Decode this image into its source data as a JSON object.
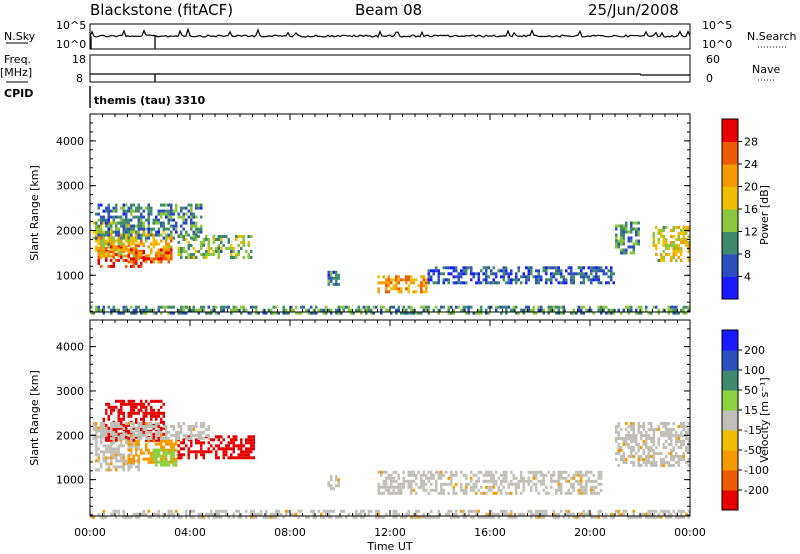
{
  "header": {
    "station": "Blackstone (fitACF)",
    "beam": "Beam 08",
    "date": "25/Jun/2008"
  },
  "top_panels": {
    "nsky_label": "N.Sky",
    "nsky_ticks": [
      "10^5",
      "10^0"
    ],
    "nsearch_label": "N.Search",
    "nsearch_ticks": [
      "10^5",
      "10^0"
    ],
    "freq_label": "Freq.",
    "freq_unit": "[MHz]",
    "freq_ticks": [
      "18",
      "8"
    ],
    "nave_label": "Nave",
    "nave_ticks": [
      "60",
      "0"
    ],
    "cpid_label": "CPID",
    "cpid_value": "themis (tau) 3310"
  },
  "chart_data": [
    {
      "type": "heatmap",
      "panel": "power",
      "ylabel": "Slant Range [km]",
      "ylim": [
        180,
        4600
      ],
      "yticks": [
        "1000",
        "2000",
        "3000",
        "4000"
      ],
      "ytick_values": [
        1000,
        2000,
        3000,
        4000
      ],
      "xlim": [
        0,
        24
      ],
      "colorbar": {
        "label": "Power [dB]",
        "ticks": [
          "4",
          "8",
          "12",
          "16",
          "20",
          "24",
          "28"
        ],
        "range": [
          0,
          30
        ],
        "colors": [
          "#1a1aff",
          "#2b4fbf",
          "#3f8a6e",
          "#8cc63f",
          "#f0c000",
          "#f59a00",
          "#ee5a00",
          "#e60000"
        ]
      },
      "regions": [
        {
          "x": [
            0.1,
            2.0
          ],
          "y": [
            1700,
            2200
          ],
          "value": 14
        },
        {
          "x": [
            0.3,
            2.2
          ],
          "y": [
            1200,
            1700
          ],
          "value": 26
        },
        {
          "x": [
            0.2,
            3.3
          ],
          "y": [
            1400,
            2000
          ],
          "value": 18
        },
        {
          "x": [
            1.5,
            3.3
          ],
          "y": [
            1300,
            1600
          ],
          "value": 24
        },
        {
          "x": [
            0.2,
            4.5
          ],
          "y": [
            1800,
            2600
          ],
          "value": 8
        },
        {
          "x": [
            3.5,
            6.5
          ],
          "y": [
            1400,
            1900
          ],
          "value": 12
        },
        {
          "x": [
            9.5,
            10.0
          ],
          "y": [
            800,
            1100
          ],
          "value": 8
        },
        {
          "x": [
            11.5,
            13.5
          ],
          "y": [
            650,
            1000
          ],
          "value": 20
        },
        {
          "x": [
            13.5,
            21.0
          ],
          "y": [
            800,
            1200
          ],
          "value": 6
        },
        {
          "x": [
            21.0,
            22.0
          ],
          "y": [
            1500,
            2200
          ],
          "value": 10
        },
        {
          "x": [
            22.5,
            24.0
          ],
          "y": [
            1300,
            2100
          ],
          "value": 16
        },
        {
          "x": [
            0.0,
            24.0
          ],
          "y": [
            180,
            320
          ],
          "value": 10
        }
      ]
    },
    {
      "type": "heatmap",
      "panel": "velocity",
      "xlabel": "Time UT",
      "ylabel": "Slant Range [km]",
      "ylim": [
        180,
        4600
      ],
      "yticks": [
        "1000",
        "2000",
        "3000",
        "4000"
      ],
      "ytick_values": [
        1000,
        2000,
        3000,
        4000
      ],
      "xlim": [
        0,
        24
      ],
      "xticks": [
        "00:00",
        "04:00",
        "08:00",
        "12:00",
        "16:00",
        "20:00",
        "00:00"
      ],
      "xtick_values": [
        0,
        4,
        8,
        12,
        16,
        20,
        24
      ],
      "colorbar": {
        "label": "Velocity [m s⁻¹]",
        "ticks": [
          "-200",
          "-100",
          "-50",
          "-15",
          "15",
          "50",
          "100",
          "200"
        ],
        "colors": [
          "#e60000",
          "#ee5a00",
          "#f59a00",
          "#f0c000",
          "#c0c0b8",
          "#8cd23c",
          "#3f8a6e",
          "#2b4fbf",
          "#1a1aff"
        ]
      },
      "regions": [
        {
          "x": [
            0.2,
            2.0
          ],
          "y": [
            1200,
            2200
          ],
          "value": "gray"
        },
        {
          "x": [
            0.5,
            3.0
          ],
          "y": [
            1900,
            2800
          ],
          "value": "red"
        },
        {
          "x": [
            1.5,
            3.5
          ],
          "y": [
            1400,
            1900
          ],
          "value": "orange"
        },
        {
          "x": [
            2.5,
            3.5
          ],
          "y": [
            1300,
            1700
          ],
          "value": "green"
        },
        {
          "x": [
            3.5,
            6.6
          ],
          "y": [
            1500,
            2000
          ],
          "value": "red"
        },
        {
          "x": [
            0.1,
            4.8
          ],
          "y": [
            1900,
            2300
          ],
          "value": "gray"
        },
        {
          "x": [
            9.5,
            10.0
          ],
          "y": [
            800,
            1100
          ],
          "value": "gray"
        },
        {
          "x": [
            11.5,
            20.5
          ],
          "y": [
            700,
            1200
          ],
          "value": "gray"
        },
        {
          "x": [
            21.0,
            24.0
          ],
          "y": [
            1300,
            2300
          ],
          "value": "gray"
        },
        {
          "x": [
            0.0,
            24.0
          ],
          "y": [
            180,
            320
          ],
          "value": "gray"
        }
      ]
    }
  ]
}
